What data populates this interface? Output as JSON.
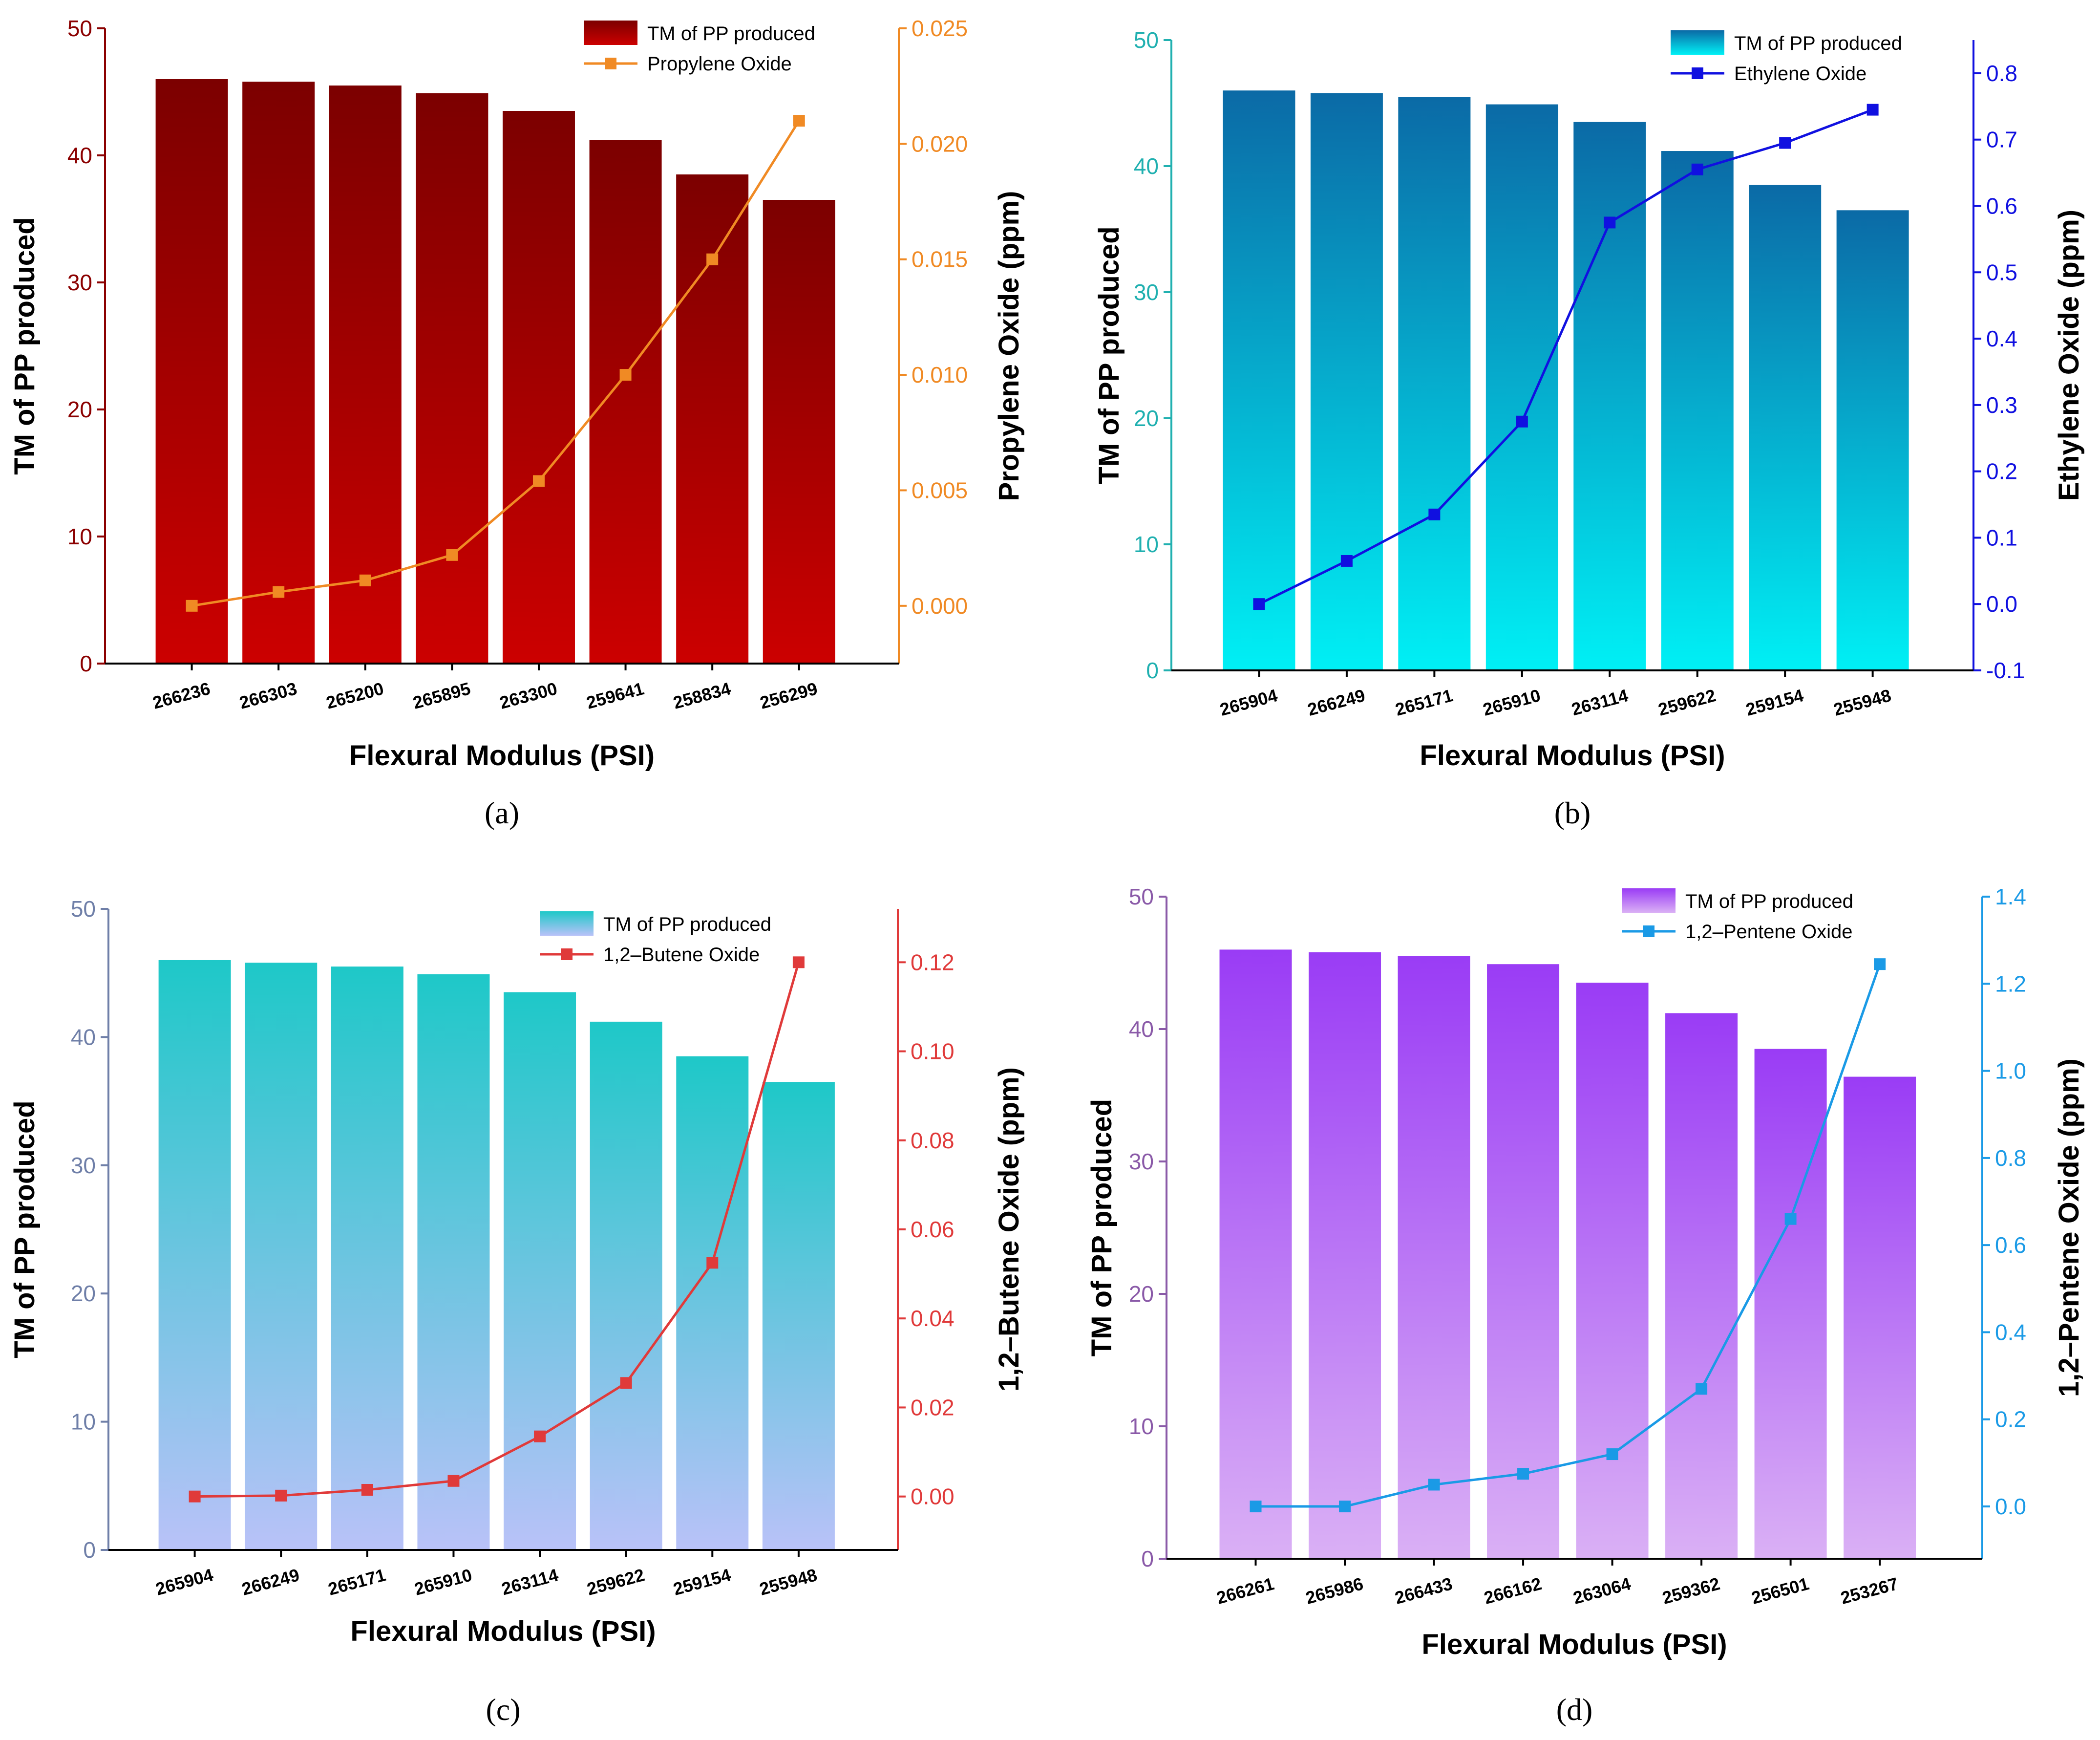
{
  "chart_data": [
    {
      "type": "bar+line",
      "panel_label": "(a)",
      "xlabel": "Flexural Modulus (PSI)",
      "ylabel": "TM of PP produced",
      "y2label": "Propylene Oxide (ppm)",
      "categories": [
        "266236",
        "266303",
        "265200",
        "265895",
        "263300",
        "259641",
        "258834",
        "256299"
      ],
      "ylim": [
        0,
        50
      ],
      "yticks": [
        "0",
        "10",
        "20",
        "30",
        "40",
        "50"
      ],
      "y2lim": [
        -0.0025,
        0.025
      ],
      "y2ticks": [
        "0.000",
        "0.005",
        "0.010",
        "0.015",
        "0.020",
        "0.025"
      ],
      "bar_series": {
        "name": "TM of PP produced",
        "values": [
          46.0,
          45.8,
          45.5,
          44.9,
          43.5,
          41.2,
          38.5,
          36.5
        ]
      },
      "line_series": {
        "name": "Propylene Oxide",
        "values": [
          0.0,
          0.0006,
          0.0011,
          0.0022,
          0.0054,
          0.01,
          0.015,
          0.021
        ]
      },
      "legend": [
        "TM of PP produced",
        "Propylene Oxide"
      ],
      "colors": {
        "bar_top": "#7c0000",
        "bar_bottom": "#cc0000",
        "line": "#f08a24",
        "left_axis": "#8b0000",
        "right_axis": "#f08a24"
      }
    },
    {
      "type": "bar+line",
      "panel_label": "(b)",
      "xlabel": "Flexural Modulus (PSI)",
      "ylabel": "TM of PP produced",
      "y2label": "Ethylene Oxide (ppm)",
      "categories": [
        "265904",
        "266249",
        "265171",
        "265910",
        "263114",
        "259622",
        "259154",
        "255948"
      ],
      "ylim": [
        0,
        50
      ],
      "yticks": [
        "0",
        "10",
        "20",
        "30",
        "40",
        "50"
      ],
      "y2lim": [
        -0.1,
        0.85
      ],
      "y2ticks": [
        "-0.1",
        "0.0",
        "0.1",
        "0.2",
        "0.3",
        "0.4",
        "0.5",
        "0.6",
        "0.7",
        "0.8"
      ],
      "bar_series": {
        "name": "TM of PP produced",
        "values": [
          46.0,
          45.8,
          45.5,
          44.9,
          43.5,
          41.2,
          38.5,
          36.5
        ]
      },
      "line_series": {
        "name": "Ethylene Oxide",
        "values": [
          0.0,
          0.065,
          0.135,
          0.275,
          0.575,
          0.655,
          0.695,
          0.745
        ]
      },
      "legend": [
        "TM of PP produced",
        "Ethylene Oxide"
      ],
      "colors": {
        "bar_top": "#0b6aa6",
        "bar_bottom": "#00f0f5",
        "line": "#1010e0",
        "left_axis": "#20b0b0",
        "right_axis": "#1010e0"
      }
    },
    {
      "type": "bar+line",
      "panel_label": "(c)",
      "xlabel": "Flexural Modulus (PSI)",
      "ylabel": "TM of PP produced",
      "y2label": "1,2–Butene Oxide (ppm)",
      "categories": [
        "265904",
        "266249",
        "265171",
        "265910",
        "263114",
        "259622",
        "259154",
        "255948"
      ],
      "ylim": [
        0,
        50
      ],
      "yticks": [
        "0",
        "10",
        "20",
        "30",
        "40",
        "50"
      ],
      "y2lim": [
        -0.012,
        0.132
      ],
      "y2ticks": [
        "0.00",
        "0.02",
        "0.04",
        "0.06",
        "0.08",
        "0.10",
        "0.12"
      ],
      "bar_series": {
        "name": "TM of PP produced",
        "values": [
          46.0,
          45.8,
          45.5,
          44.9,
          43.5,
          41.2,
          38.5,
          36.5
        ]
      },
      "line_series": {
        "name": "1,2–Butene Oxide",
        "values": [
          0.0,
          0.0002,
          0.0015,
          0.0035,
          0.0135,
          0.0255,
          0.0525,
          0.12
        ]
      },
      "legend": [
        "TM of PP produced",
        "1,2–Butene Oxide"
      ],
      "colors": {
        "bar_top": "#1ec8c8",
        "bar_bottom": "#b9c2f8",
        "line": "#e03a3a",
        "left_axis": "#6f7fa8",
        "right_axis": "#e03a3a"
      }
    },
    {
      "type": "bar+line",
      "panel_label": "(d)",
      "xlabel": "Flexural Modulus (PSI)",
      "ylabel": "TM of PP produced",
      "y2label": "1,2–Pentene Oxide (ppm)",
      "categories": [
        "266261",
        "265986",
        "266433",
        "266162",
        "263064",
        "259362",
        "256501",
        "253267"
      ],
      "ylim": [
        0,
        50
      ],
      "yticks": [
        "0",
        "10",
        "20",
        "30",
        "40",
        "50"
      ],
      "y2lim": [
        -0.12,
        1.4
      ],
      "y2ticks": [
        "0.0",
        "0.2",
        "0.4",
        "0.6",
        "0.8",
        "1.0",
        "1.2",
        "1.4"
      ],
      "bar_series": {
        "name": "TM of PP produced",
        "values": [
          46.0,
          45.8,
          45.5,
          44.9,
          43.5,
          41.2,
          38.5,
          36.4
        ]
      },
      "line_series": {
        "name": "1,2–Pentene Oxide",
        "values": [
          0.0,
          0.0,
          0.05,
          0.075,
          0.12,
          0.27,
          0.66,
          1.245
        ]
      },
      "legend": [
        "TM of PP produced",
        "1,2–Pentene Oxide"
      ],
      "colors": {
        "bar_top": "#9a3cf5",
        "bar_bottom": "#dab0f5",
        "line": "#1a9ae6",
        "left_axis": "#8a5aa8",
        "right_axis": "#1a9ae6"
      }
    }
  ]
}
